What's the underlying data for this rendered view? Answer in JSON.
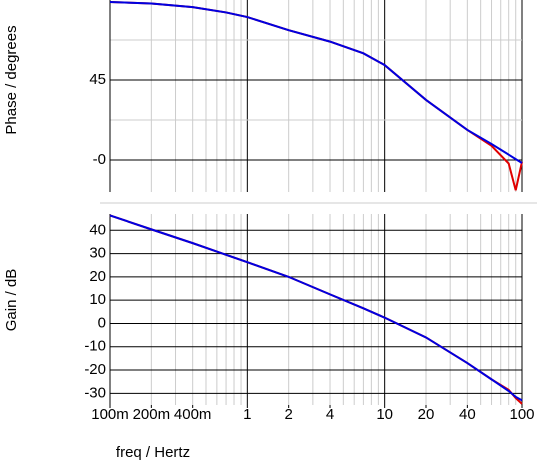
{
  "chart_data": [
    {
      "type": "line",
      "y_label": "Phase / degrees",
      "xscale": "log",
      "xlim": [
        0.1,
        100
      ],
      "grid": true,
      "ylim": [
        -18,
        90
      ],
      "yticks": [
        45,
        {
          "value": 0,
          "label": "-0"
        }
      ],
      "y_minor_grid": [
        22.5,
        67.5
      ],
      "x": [
        0.1,
        0.2,
        0.4,
        0.7,
        1,
        2,
        4,
        7,
        10,
        20,
        40,
        60,
        80,
        90,
        100
      ],
      "series": [
        {
          "name": "phase-red",
          "color": "#e00000",
          "values": [
            88.9,
            88,
            86,
            83,
            80.4,
            73,
            66.6,
            60,
            53.4,
            33.8,
            16.9,
            8,
            -2,
            -17,
            -1
          ]
        },
        {
          "name": "phase-blue",
          "color": "#0000e0",
          "values": [
            88.9,
            88,
            86,
            83,
            80.4,
            73,
            66.6,
            60,
            53.4,
            33.8,
            16.9,
            9,
            3,
            0.5,
            -1.7
          ]
        }
      ]
    },
    {
      "type": "line",
      "y_label": "Gain / dB",
      "x_label": "freq / Hertz",
      "xscale": "log",
      "xlim": [
        0.1,
        100
      ],
      "grid": true,
      "ylim": [
        -35,
        47
      ],
      "yticks": [
        40,
        30,
        20,
        10,
        0,
        -10,
        -20,
        -30
      ],
      "xticks": [
        {
          "value": 0.1,
          "label": "100m"
        },
        {
          "value": 0.2,
          "label": "200m"
        },
        {
          "value": 0.4,
          "label": "400m"
        },
        1,
        2,
        4,
        10,
        20,
        40,
        100
      ],
      "x": [
        0.1,
        0.2,
        0.4,
        0.7,
        1,
        2,
        4,
        7,
        10,
        20,
        40,
        60,
        80,
        90,
        100
      ],
      "series": [
        {
          "name": "gain-red",
          "color": "#e00000",
          "values": [
            46.4,
            40.4,
            34.5,
            29.5,
            26.3,
            20,
            12.5,
            6.5,
            2.5,
            -6,
            -17,
            -24,
            -28.5,
            -32,
            -34.5
          ]
        },
        {
          "name": "gain-blue",
          "color": "#0000e0",
          "values": [
            46.4,
            40.4,
            34.5,
            29.5,
            26.3,
            20,
            12.5,
            6.5,
            2.5,
            -6,
            -17,
            -24,
            -29,
            -31.5,
            -33
          ]
        }
      ]
    }
  ]
}
